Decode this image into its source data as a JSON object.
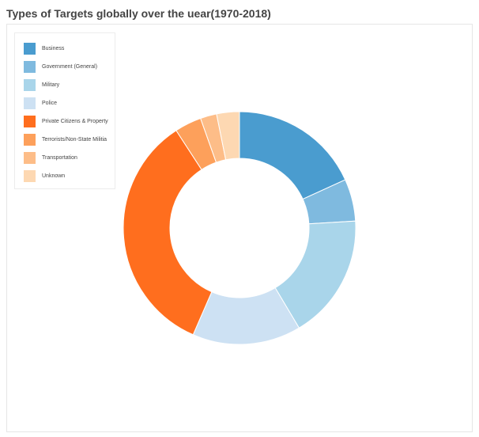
{
  "chart_data": {
    "type": "pie",
    "title": "Types of Targets globally over the uear(1970-2018)",
    "donut": true,
    "legend_position": "top-left",
    "slices": [
      {
        "label": "Business",
        "value": 22.4,
        "color": "#4a9ccf"
      },
      {
        "label": "Government (General)",
        "value": 7.2,
        "color": "#7fbadf"
      },
      {
        "label": "Military",
        "value": 21.4,
        "color": "#a9d5ea"
      },
      {
        "label": "Police",
        "value": 18.6,
        "color": "#cde1f3"
      },
      {
        "label": "Private Citizens & Property",
        "value": 42.2,
        "color": "#ff6e1e"
      },
      {
        "label": "Terrorists/Non-State Militia",
        "value": 4.6,
        "color": "#fda05b"
      },
      {
        "label": "Transportation",
        "value": 2.8,
        "color": "#fdbd88"
      },
      {
        "label": "Unknown",
        "value": 3.9,
        "color": "#fdd8b2"
      }
    ]
  }
}
